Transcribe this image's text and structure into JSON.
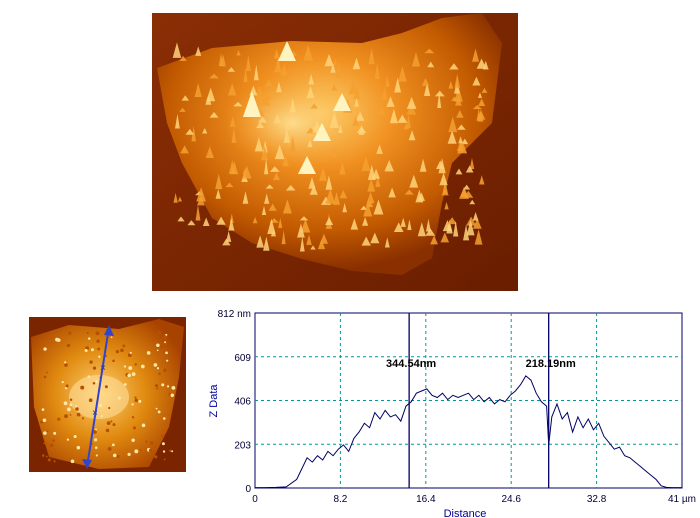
{
  "images": {
    "afm_3d_render": {
      "colormap": [
        "#5a1800",
        "#9a3a00",
        "#d46a00",
        "#f0a030",
        "#ffe8a0"
      ],
      "background": "#7a2a05"
    },
    "afm_2d_thumbnail": {
      "colormap": [
        "#6a2000",
        "#c05a00",
        "#f0a030",
        "#ffe0a0"
      ],
      "line_color": "#3344cc"
    }
  },
  "colors": {
    "profile_line": "#000066",
    "grid": "#009999",
    "cursor": "#000066",
    "axis": "#000066",
    "plot_bg": "#ffffff",
    "frame": "#000066"
  },
  "chart_data": {
    "type": "line",
    "xlabel": "Distance",
    "ylabel": "Z Data",
    "xlim": [
      0,
      41
    ],
    "ylim": [
      0,
      812
    ],
    "x_ticks": [
      0,
      8.2,
      16.4,
      24.6,
      32.8,
      41
    ],
    "x_tick_labels": [
      "0",
      "8.2",
      "16.4",
      "24.6",
      "32.8",
      "41 µm"
    ],
    "y_ticks": [
      0,
      203,
      406,
      609,
      812
    ],
    "y_tick_labels": [
      "0",
      "203",
      "406",
      "609",
      "812 nm"
    ],
    "grid": true,
    "annotations": [
      {
        "text": "344.54nm",
        "cursor_x": 14.8
      },
      {
        "text": "218.19nm",
        "cursor_x": 28.2
      }
    ],
    "series": [
      {
        "x": [
          0,
          1,
          2,
          3,
          4,
          4.5,
          5,
          5.5,
          6,
          6.5,
          7,
          7.5,
          8,
          8.5,
          9,
          9.5,
          10,
          10.5,
          11,
          11.5,
          12,
          12.5,
          13,
          13.5,
          14,
          14.5,
          15,
          15.5,
          16,
          16.5,
          17,
          17.5,
          18,
          18.5,
          19,
          19.5,
          20,
          20.5,
          21,
          21.5,
          22,
          22.5,
          23,
          23.5,
          24,
          24.5,
          25,
          25.5,
          26,
          26.5,
          27,
          27.5,
          28,
          28.2,
          28.5,
          29,
          29.5,
          30,
          30.5,
          31,
          31.5,
          32,
          32.5,
          33,
          33.5,
          34,
          34.5,
          35,
          35.5,
          36,
          36.5,
          37,
          37.5,
          38,
          38.5,
          39,
          39.5,
          40,
          41
        ],
        "y": [
          2,
          2,
          3,
          5,
          40,
          90,
          140,
          120,
          150,
          130,
          170,
          150,
          180,
          200,
          170,
          230,
          260,
          300,
          280,
          350,
          320,
          360,
          330,
          340,
          310,
          380,
          400,
          440,
          450,
          460,
          430,
          420,
          440,
          410,
          430,
          420,
          430,
          440,
          410,
          430,
          400,
          420,
          390,
          410,
          400,
          430,
          450,
          480,
          520,
          500,
          440,
          400,
          380,
          200,
          330,
          390,
          320,
          350,
          260,
          330,
          280,
          320,
          270,
          300,
          240,
          210,
          180,
          190,
          150,
          140,
          120,
          100,
          80,
          60,
          40,
          10,
          3,
          2,
          2
        ]
      }
    ]
  }
}
